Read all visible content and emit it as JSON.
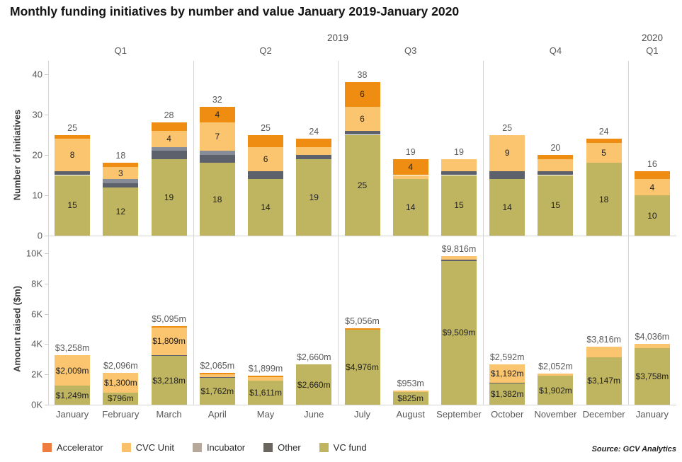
{
  "title": "Monthly funding initiatives by number and value January 2019-January 2020",
  "source": "Source: GCV Analytics",
  "years": [
    {
      "label": "2019"
    },
    {
      "label": "2020"
    }
  ],
  "quarters": [
    {
      "label": "Q1",
      "year": "2019",
      "months": 3
    },
    {
      "label": "Q2",
      "year": "2019",
      "months": 3
    },
    {
      "label": "Q3",
      "year": "2019",
      "months": 3
    },
    {
      "label": "Q4",
      "year": "2019",
      "months": 3
    },
    {
      "label": "Q1",
      "year": "2020",
      "months": 1
    }
  ],
  "months": [
    "January",
    "February",
    "March",
    "April",
    "May",
    "June",
    "July",
    "August",
    "September",
    "October",
    "November",
    "December",
    "January"
  ],
  "legend": [
    {
      "label": "Accelerator",
      "color": "#ee7b40"
    },
    {
      "label": "CVC Unit",
      "color": "#fbc16a"
    },
    {
      "label": "Incubator",
      "color": "#b6a99b"
    },
    {
      "label": "Other",
      "color": "#6b655f"
    },
    {
      "label": "VC fund",
      "color": "#bfb45f"
    }
  ],
  "chart_data": [
    {
      "type": "bar",
      "stacked": true,
      "ylabel": "Number of initiatives",
      "ylim": [
        0,
        40
      ],
      "grid": false,
      "yticks": [
        {
          "v": 0,
          "label": "0"
        },
        {
          "v": 10,
          "label": "10"
        },
        {
          "v": 20,
          "label": "20"
        },
        {
          "v": 30,
          "label": "30"
        },
        {
          "v": 40,
          "label": "40"
        }
      ],
      "totals": [
        25,
        18,
        28,
        32,
        25,
        24,
        38,
        19,
        19,
        25,
        20,
        24,
        16
      ],
      "total_labels": [
        "25",
        "18",
        "28",
        "32",
        "25",
        "24",
        "38",
        "19",
        "19",
        "25",
        "20",
        "24",
        "16"
      ],
      "series_order": "bottom-to-top",
      "series": [
        {
          "name": "VC fund",
          "color": "#bfb45f",
          "values": [
            15,
            12,
            19,
            18,
            14,
            19,
            25,
            14,
            15,
            14,
            15,
            18,
            10
          ],
          "labels": [
            "15",
            "12",
            "19",
            "18",
            "14",
            "19",
            "25",
            "14",
            "15",
            "14",
            "15",
            "18",
            "10"
          ]
        },
        {
          "name": "Other",
          "color": "#5c616b",
          "values": [
            1,
            1,
            2,
            2,
            2,
            1,
            1,
            0,
            1,
            2,
            1,
            0,
            0
          ],
          "labels": [
            "",
            "",
            "",
            "",
            "",
            "",
            "",
            "",
            "",
            "",
            "",
            "",
            ""
          ]
        },
        {
          "name": "Incubator",
          "color": "#868d98",
          "values": [
            0,
            1,
            1,
            1,
            0,
            0,
            0,
            0,
            0,
            0,
            0,
            0,
            0
          ],
          "labels": [
            "",
            "",
            "",
            "",
            "",
            "",
            "",
            "",
            "",
            "",
            "",
            "",
            ""
          ]
        },
        {
          "name": "CVC Unit",
          "color": "#fbc46e",
          "values": [
            8,
            3,
            4,
            7,
            6,
            2,
            6,
            1,
            3,
            9,
            3,
            5,
            4
          ],
          "labels": [
            "8",
            "3",
            "4",
            "7",
            "6",
            "",
            "6",
            "",
            "",
            "9",
            "",
            "5",
            "4"
          ]
        },
        {
          "name": "Accelerator",
          "color": "#ee8d11",
          "values": [
            1,
            1,
            2,
            4,
            3,
            2,
            6,
            4,
            0,
            0,
            1,
            1,
            2
          ],
          "labels": [
            "",
            "",
            "",
            "4",
            "",
            "",
            "6",
            "4",
            "",
            "",
            "",
            "",
            ""
          ]
        }
      ]
    },
    {
      "type": "bar",
      "stacked": true,
      "ylabel": "Amount raised ($m)",
      "ylim": [
        0,
        10000
      ],
      "grid": false,
      "yticks": [
        {
          "v": 0,
          "label": "0K"
        },
        {
          "v": 2000,
          "label": "2K"
        },
        {
          "v": 4000,
          "label": "4K"
        },
        {
          "v": 6000,
          "label": "6K"
        },
        {
          "v": 8000,
          "label": "8K"
        },
        {
          "v": 10000,
          "label": "10K"
        }
      ],
      "totals": [
        3258,
        2096,
        5095,
        2065,
        1899,
        2660,
        5056,
        953,
        9816,
        2592,
        2052,
        3816,
        4036
      ],
      "total_labels": [
        "$3,258m",
        "$2,096m",
        "$5,095m",
        "$2,065m",
        "$1,899m",
        "$2,660m",
        "$5,056m",
        "$953m",
        "$9,816m",
        "$2,592m",
        "$2,052m",
        "$3,816m",
        "$4,036m"
      ],
      "series_order": "bottom-to-top",
      "series": [
        {
          "name": "VC fund",
          "color": "#bfb45f",
          "values": [
            1249,
            796,
            3218,
            1762,
            1611,
            2660,
            4976,
            825,
            9509,
            1382,
            1902,
            3147,
            3758
          ],
          "labels": [
            "$1,249m",
            "$796m",
            "$3,218m",
            "$1,762m",
            "$1,611m",
            "$2,660m",
            "$4,976m",
            "$825m",
            "$9,509m",
            "$1,382m",
            "$1,902m",
            "$3,147m",
            "$3,758m"
          ]
        },
        {
          "name": "Other",
          "color": "#5c616b",
          "values": [
            0,
            0,
            40,
            50,
            0,
            0,
            0,
            0,
            50,
            18,
            0,
            0,
            0
          ],
          "labels": [
            "",
            "",
            "",
            "",
            "",
            "",
            "",
            "",
            "",
            "",
            "",
            "",
            ""
          ]
        },
        {
          "name": "Incubator",
          "color": "#868d98",
          "values": [
            0,
            0,
            0,
            0,
            0,
            0,
            0,
            0,
            0,
            0,
            0,
            0,
            0
          ],
          "labels": [
            "",
            "",
            "",
            "",
            "",
            "",
            "",
            "",
            "",
            "",
            "",
            "",
            ""
          ]
        },
        {
          "name": "CVC Unit",
          "color": "#fbc46e",
          "values": [
            2009,
            1300,
            1809,
            190,
            190,
            0,
            0,
            128,
            257,
            1192,
            150,
            669,
            278
          ],
          "labels": [
            "$2,009m",
            "$1,300m",
            "$1,809m",
            "",
            "",
            "",
            "",
            "",
            "",
            "$1,192m",
            "",
            "",
            ""
          ]
        },
        {
          "name": "Accelerator",
          "color": "#ee8d11",
          "values": [
            0,
            0,
            28,
            63,
            98,
            0,
            80,
            0,
            0,
            0,
            0,
            0,
            0
          ],
          "labels": [
            "",
            "",
            "",
            "",
            "",
            "",
            "",
            "",
            "",
            "",
            "",
            "",
            ""
          ]
        }
      ]
    }
  ]
}
